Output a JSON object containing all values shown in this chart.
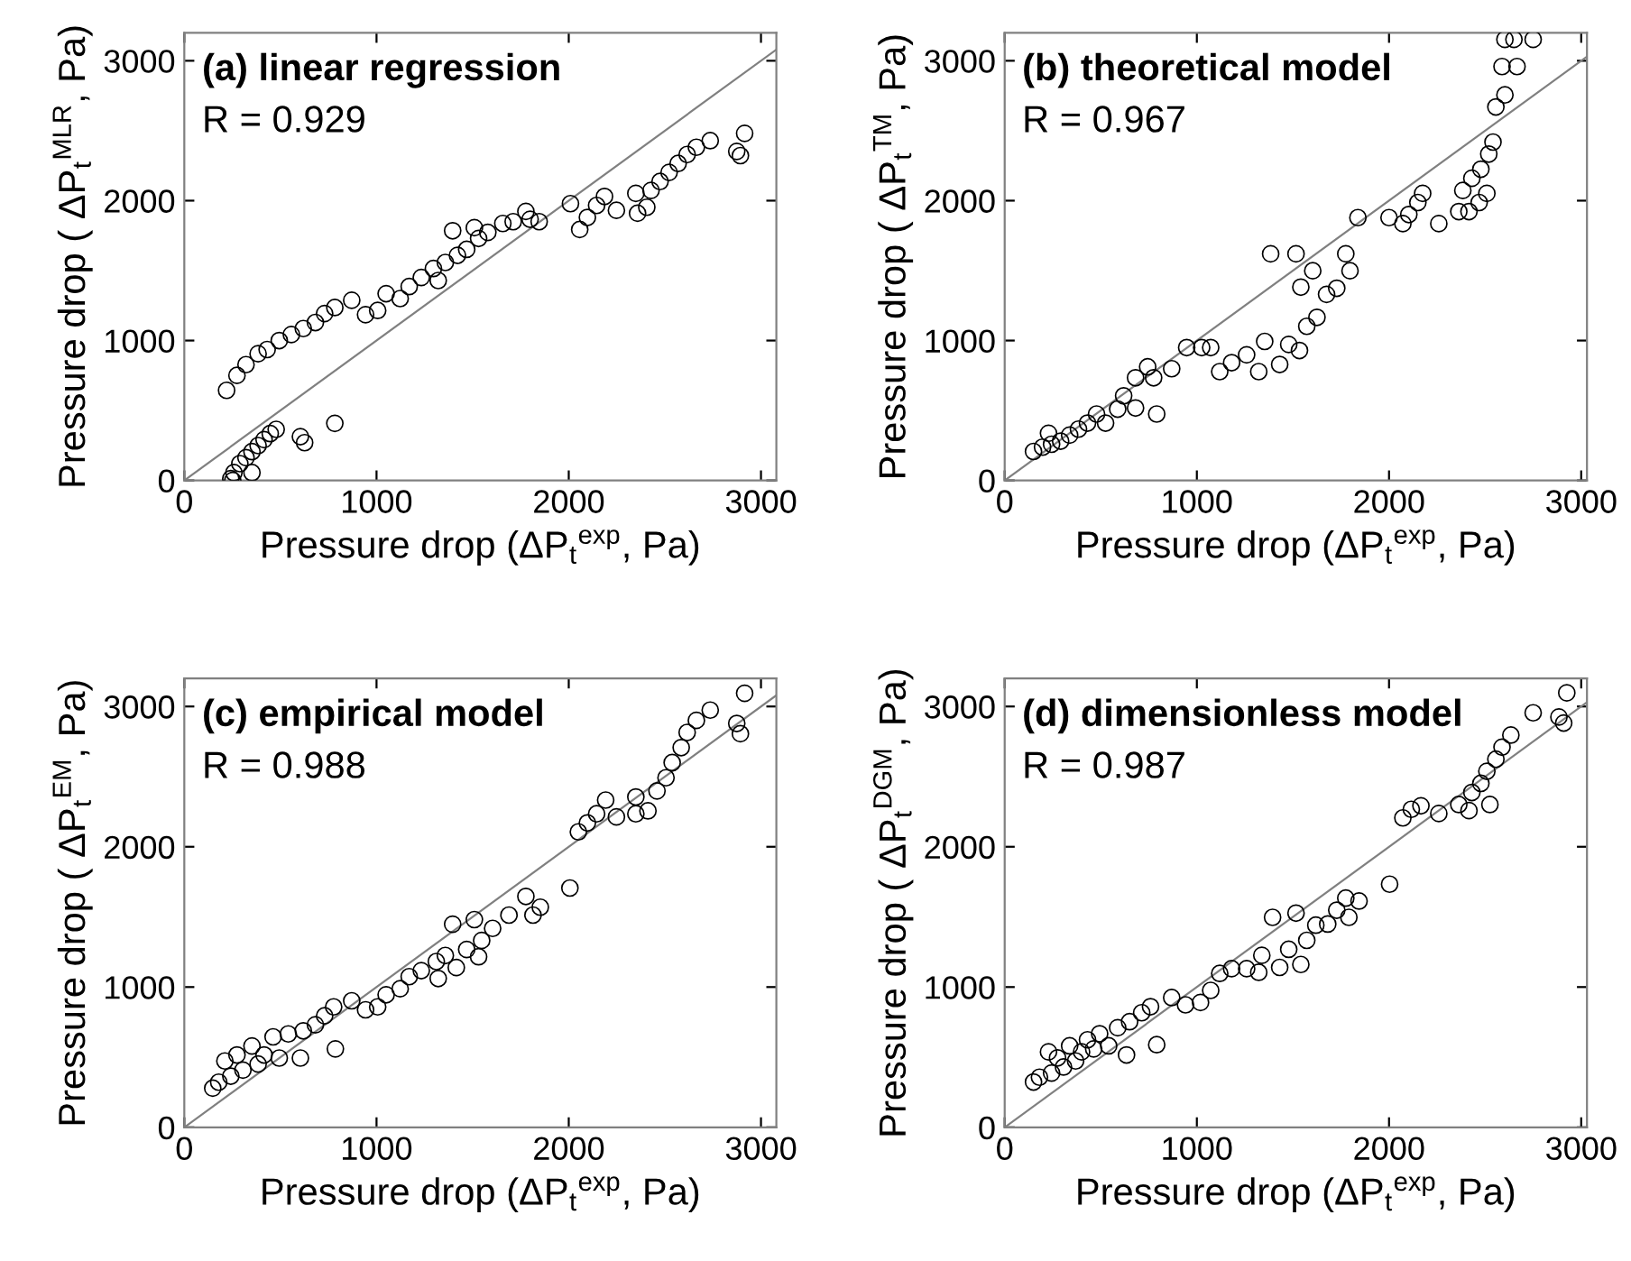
{
  "chart_data": [
    {
      "type": "scatter",
      "title": "(a) linear regression",
      "annotations": [
        "R = 0.929"
      ],
      "xlabel": "Pressure drop (ΔP$_{t}$$^{exp}$, Pa)",
      "ylabel": "Pressure drop ( ΔP$_{t}$$^{MLR}$, Pa)",
      "xlim": [
        0,
        3080
      ],
      "ylim": [
        0,
        3200
      ],
      "xticks": [
        0,
        1000,
        2000,
        3000
      ],
      "yticks": [
        0,
        1000,
        2000,
        3000
      ],
      "marker": "circle",
      "grid": false,
      "series": [
        {
          "color": "#000000",
          "x": [
            242,
            258,
            289,
            321,
            352,
            384,
            415,
            447,
            478,
            604,
            626,
            783,
            252,
            352,
            220,
            274,
            321,
            384,
            431,
            494,
            557,
            619,
            682,
            730,
            783,
            871,
            943,
            1006,
            1050,
            1123,
            1170,
            1233,
            1321,
            1296,
            1358,
            1396,
            1421,
            1469,
            1509,
            1531,
            1579,
            1657,
            1711,
            1777,
            1799,
            1846,
            2009,
            2057,
            2097,
            2145,
            2186,
            2248,
            2349,
            2358,
            2406,
            2428,
            2475,
            2522,
            2569,
            2616,
            2664,
            2736,
            2874,
            2893,
            2915
          ],
          "values": [
            13,
            56,
            120,
            163,
            206,
            249,
            292,
            335,
            365,
            313,
            270,
            408,
            0,
            56,
            644,
            751,
            828,
            906,
            936,
            1000,
            1043,
            1086,
            1129,
            1193,
            1236,
            1288,
            1185,
            1215,
            1335,
            1300,
            1386,
            1451,
            1429,
            1515,
            1558,
            1785,
            1609,
            1652,
            1807,
            1730,
            1773,
            1837,
            1850,
            1923,
            1867,
            1850,
            1979,
            1794,
            1880,
            1966,
            2030,
            1931,
            2052,
            1910,
            1953,
            2073,
            2137,
            2202,
            2266,
            2330,
            2382,
            2429,
            2352,
            2322,
            2481
          ]
        },
        {
          "type": "line",
          "color": "#808080",
          "x": [
            0,
            3080
          ],
          "values": [
            0,
            3080
          ],
          "marker": "none"
        }
      ]
    },
    {
      "type": "scatter",
      "title": "(b) theoretical model",
      "annotations": [
        "R = 0.967"
      ],
      "xlabel": "Pressure drop (ΔP$_{t}$$^{exp}$, Pa)",
      "ylabel": "Pressure drop ( ΔP$_{t}$$^{TM}$, Pa)",
      "xlim": [
        0,
        3030
      ],
      "ylim": [
        0,
        3200
      ],
      "xticks": [
        0,
        1000,
        2000,
        3000
      ],
      "yticks": [
        0,
        1000,
        2000,
        3000
      ],
      "marker": "circle",
      "grid": false,
      "series": [
        {
          "color": "#000000",
          "x": [
            150,
            197,
            244,
            228,
            291,
            338,
            384,
            431,
            478,
            525,
            588,
            619,
            681,
            681,
            744,
            791,
            775,
            869,
            947,
            1025,
            1072,
            1119,
            1181,
            1259,
            1322,
            1353,
            1384,
            1431,
            1478,
            1516,
            1534,
            1541,
            1572,
            1603,
            1625,
            1675,
            1728,
            1775,
            1797,
            1838,
            2000,
            2072,
            2103,
            2150,
            2175,
            2259,
            2363,
            2416,
            2384,
            2431,
            2478,
            2469,
            2509,
            2519,
            2541,
            2556,
            2603,
            2588,
            2666,
            2603,
            2650,
            2750
          ],
          "values": [
            207,
            238,
            259,
            337,
            281,
            324,
            367,
            410,
            475,
            410,
            510,
            605,
            518,
            734,
            812,
            475,
            734,
            799,
            950,
            950,
            950,
            778,
            842,
            898,
            778,
            994,
            1620,
            829,
            972,
            1620,
            929,
            1382,
            1102,
            1499,
            1166,
            1330,
            1374,
            1620,
            1499,
            1879,
            1879,
            1836,
            1901,
            1987,
            2052,
            1836,
            1922,
            1922,
            2073,
            2160,
            2225,
            1987,
            2052,
            2333,
            2419,
            2670,
            2756,
            2959,
            2959,
            3153,
            3153,
            3153
          ]
        },
        {
          "type": "line",
          "color": "#808080",
          "x": [
            0,
            3030
          ],
          "values": [
            0,
            3030
          ],
          "marker": "none"
        }
      ]
    },
    {
      "type": "scatter",
      "title": "(c) empirical model",
      "annotations": [
        "R = 0.988"
      ],
      "xlabel": "Pressure drop (ΔP$_{t}$$^{exp}$, Pa)",
      "ylabel": "Pressure drop ( ΔP$_{t}$$^{EM}$, Pa)",
      "xlim": [
        0,
        3080
      ],
      "ylim": [
        0,
        3200
      ],
      "xticks": [
        0,
        1000,
        2000,
        3000
      ],
      "yticks": [
        0,
        1000,
        2000,
        3000
      ],
      "marker": "circle",
      "grid": false,
      "series": [
        {
          "color": "#000000",
          "x": [
            148,
            179,
            211,
            242,
            274,
            305,
            352,
            384,
            415,
            462,
            494,
            541,
            604,
            619,
            682,
            730,
            777,
            786,
            871,
            943,
            1006,
            1050,
            1123,
            1170,
            1233,
            1321,
            1311,
            1358,
            1396,
            1415,
            1469,
            1509,
            1531,
            1547,
            1604,
            1689,
            1777,
            1814,
            1852,
            2006,
            2050,
            2097,
            2145,
            2192,
            2248,
            2349,
            2349,
            2412,
            2459,
            2506,
            2538,
            2585,
            2616,
            2664,
            2736,
            2874,
            2893,
            2915
          ],
          "values": [
            279,
            322,
            473,
            365,
            516,
            408,
            580,
            451,
            516,
            645,
            494,
            666,
            494,
            688,
            731,
            795,
            859,
            559,
            902,
            838,
            859,
            945,
            988,
            1074,
            1117,
            1061,
            1182,
            1225,
            1448,
            1139,
            1268,
            1481,
            1216,
            1332,
            1418,
            1513,
            1646,
            1513,
            1569,
            1706,
            2106,
            2170,
            2235,
            2333,
            2213,
            2235,
            2355,
            2256,
            2398,
            2492,
            2600,
            2707,
            2815,
            2901,
            2974,
            2879,
            2806,
            3094
          ]
        },
        {
          "type": "line",
          "color": "#808080",
          "x": [
            0,
            3080
          ],
          "values": [
            0,
            3080
          ],
          "marker": "none"
        }
      ]
    },
    {
      "type": "scatter",
      "title": "(d) dimensionless model",
      "annotations": [
        "R = 0.987"
      ],
      "xlabel": "Pressure drop (ΔP$_{t}$$^{exp}$, Pa)",
      "ylabel": "Pressure drop ( ΔP$_{t}$$^{DGM}$, Pa)",
      "xlim": [
        0,
        3030
      ],
      "ylim": [
        0,
        3200
      ],
      "xticks": [
        0,
        1000,
        2000,
        3000
      ],
      "yticks": [
        0,
        1000,
        2000,
        3000
      ],
      "marker": "circle",
      "grid": false,
      "series": [
        {
          "color": "#000000",
          "x": [
            150,
            181,
            228,
            244,
            275,
            306,
            338,
            369,
            400,
            431,
            463,
            494,
            541,
            588,
            634,
            650,
            713,
            759,
            791,
            869,
            941,
            1019,
            1072,
            1119,
            1181,
            1259,
            1322,
            1338,
            1394,
            1431,
            1478,
            1516,
            1541,
            1572,
            1619,
            1681,
            1728,
            1775,
            1791,
            1844,
            2003,
            2072,
            2116,
            2166,
            2259,
            2363,
            2416,
            2431,
            2478,
            2509,
            2525,
            2556,
            2588,
            2634,
            2750,
            2884,
            2909,
            2925
          ],
          "values": [
            323,
            357,
            538,
            387,
            495,
            430,
            581,
            473,
            538,
            624,
            559,
            667,
            581,
            710,
            516,
            753,
            817,
            860,
            589,
            925,
            873,
            890,
            976,
            1097,
            1131,
            1131,
            1105,
            1226,
            1497,
            1140,
            1269,
            1527,
            1161,
            1333,
            1441,
            1449,
            1548,
            1634,
            1497,
            1613,
            1733,
            2206,
            2267,
            2292,
            2237,
            2301,
            2258,
            2387,
            2452,
            2538,
            2301,
            2624,
            2710,
            2796,
            2955,
            2925,
            2882,
            3097
          ]
        },
        {
          "type": "line",
          "color": "#808080",
          "x": [
            0,
            3030
          ],
          "values": [
            0,
            3030
          ],
          "marker": "none"
        }
      ]
    }
  ]
}
